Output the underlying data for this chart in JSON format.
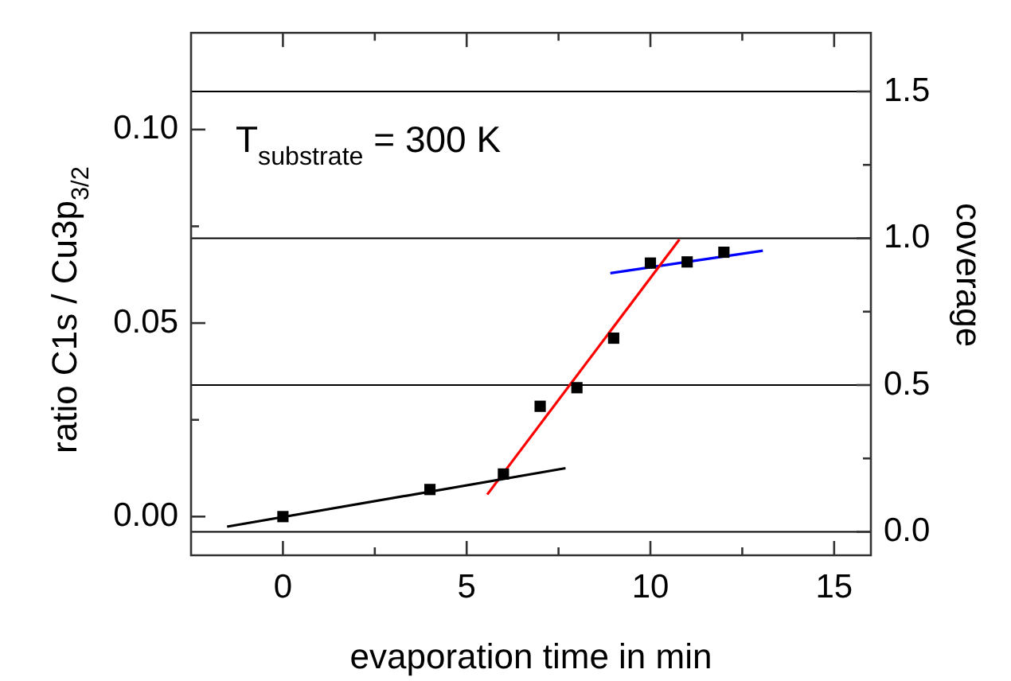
{
  "chart_data": {
    "type": "scatter",
    "xlabel": "evaporation time in min",
    "ylabel": "ratio C1s / Cu3p$_{3/2}$",
    "y2label": "coverage",
    "annotations": [
      "T$_{substrate}$ = 300 K"
    ],
    "xlim": [
      -2.5,
      16
    ],
    "xticks": [
      0,
      {
        "value": 2.5,
        "label": null
      },
      5,
      {
        "value": 7.5,
        "label": null
      },
      10,
      {
        "value": 12.5,
        "label": null
      },
      15
    ],
    "ylim": [
      -0.01,
      0.125
    ],
    "yticks": [
      {
        "value": 0,
        "label": "0.00"
      },
      {
        "value": 0.025,
        "label": null
      },
      0.05,
      {
        "value": 0.075,
        "label": null
      },
      {
        "value": 0.1,
        "label": "0.10"
      }
    ],
    "y2lim": [
      -0.08,
      1.7
    ],
    "y2ticks": [
      {
        "value": 0,
        "label": "0.0"
      },
      {
        "value": 0.25,
        "label": null
      },
      0.5,
      {
        "value": 0.75,
        "label": null
      },
      {
        "value": 1,
        "label": "1.0"
      },
      {
        "value": 1.25,
        "label": null
      },
      1.5
    ],
    "ref_lines": [
      {
        "axis": "y2",
        "value": 0,
        "color": "#000000"
      },
      {
        "axis": "y2",
        "value": 0.5,
        "color": "#000000"
      },
      {
        "axis": "y2",
        "value": 1,
        "color": "#000000"
      },
      {
        "axis": "y2",
        "value": 1.5,
        "color": "#000000"
      }
    ],
    "grid": false,
    "legend": false,
    "marker": "square",
    "series": [
      {
        "color": "#000000",
        "x": [
          0,
          4,
          6,
          7,
          8,
          9,
          10,
          11,
          12
        ],
        "values": [
          0.0,
          0.007,
          0.011,
          0.0285,
          0.0333,
          0.0461,
          0.0655,
          0.0658,
          0.0683
        ]
      },
      {
        "type": "line",
        "marker": "none",
        "color": "#000000",
        "x": [
          -1.52,
          7.69
        ],
        "values": [
          -0.0026,
          0.0125
        ]
      },
      {
        "type": "line",
        "marker": "none",
        "color": "#ff0000",
        "x": [
          5.56,
          10.79
        ],
        "values": [
          0.0057,
          0.0716
        ]
      },
      {
        "type": "line",
        "marker": "none",
        "color": "#0000ff",
        "x": [
          8.91,
          13.06
        ],
        "values": [
          0.0629,
          0.0687
        ]
      }
    ]
  }
}
